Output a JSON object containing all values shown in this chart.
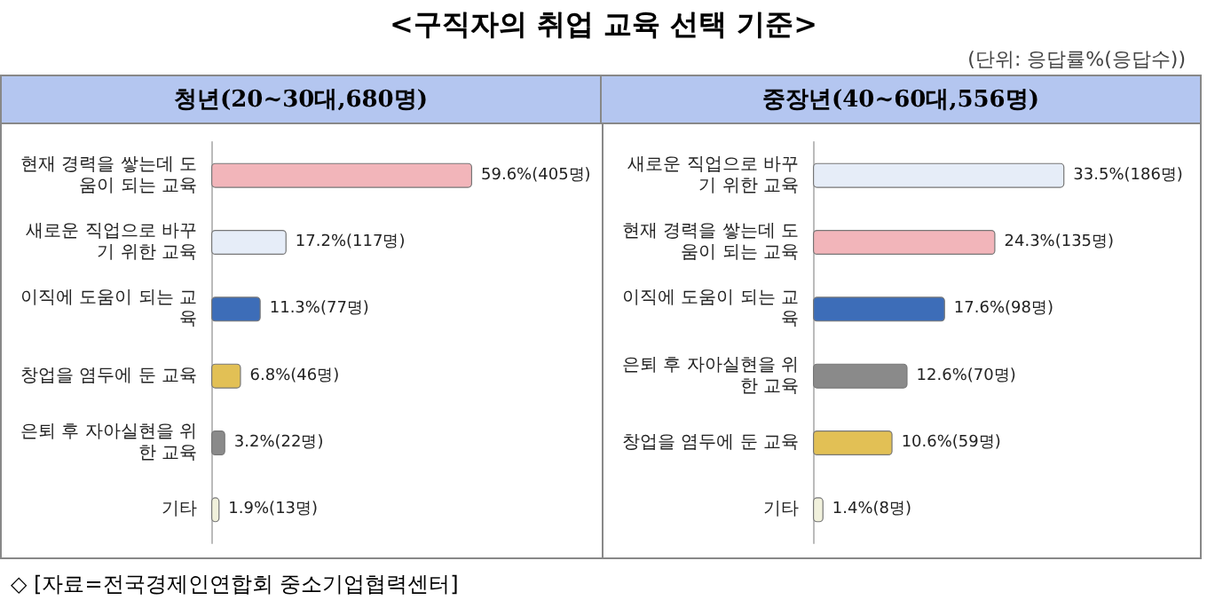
{
  "chart_data": [
    {
      "type": "bar",
      "orientation": "horizontal",
      "title": "청년(20~30대,680명)",
      "tick_labels": "y",
      "annotations": [
        "<구직자의 취업 교육 선택 기준>",
        "(단위: 응답률%(응답수))",
        "◇ [자료=전국경제인연합회 중소기업협력센터]"
      ],
      "categories": [
        "현재 경력을 쌓는데 도움이 되는 교육",
        "새로운 직업으로 바꾸기 위한 교육",
        "이직에 도움이 되는 교육",
        "창업을 염두에 둔 교육",
        "은퇴 후 자아실현을 위한 교육",
        "기타"
      ],
      "values": [
        59.6,
        17.2,
        11.3,
        6.8,
        3.2,
        1.9
      ],
      "value_labels": [
        "59.6%(405명)",
        "17.2%(117명)",
        "11.3%(77명)",
        "6.8%(46명)",
        "3.2%(22명)",
        "1.9%(13명)"
      ],
      "colors": [
        "#f2b5ba",
        "#e6edf8",
        "#3d6db8",
        "#e2c055",
        "#8a8a8a",
        "#f1f1dc"
      ]
    },
    {
      "type": "bar",
      "orientation": "horizontal",
      "title": "중장년(40~60대,556명)",
      "tick_labels": "y",
      "categories": [
        "새로운 직업으로 바꾸기 위한 교육",
        "현재 경력을 쌓는데 도움이 되는 교육",
        "이직에 도움이 되는 교육",
        "은퇴 후 자아실현을 위한 교육",
        "창업을 염두에 둔 교육",
        "기타"
      ],
      "values": [
        33.5,
        24.3,
        17.6,
        12.6,
        10.6,
        1.4
      ],
      "value_labels": [
        "33.5%(186명)",
        "24.3%(135명)",
        "17.6%(98명)",
        "12.6%(70명)",
        "10.6%(59명)",
        "1.4%(8명)"
      ],
      "colors": [
        "#e6edf8",
        "#f2b5ba",
        "#3d6db8",
        "#8a8a8a",
        "#e2c055",
        "#f1f1dc"
      ]
    }
  ]
}
